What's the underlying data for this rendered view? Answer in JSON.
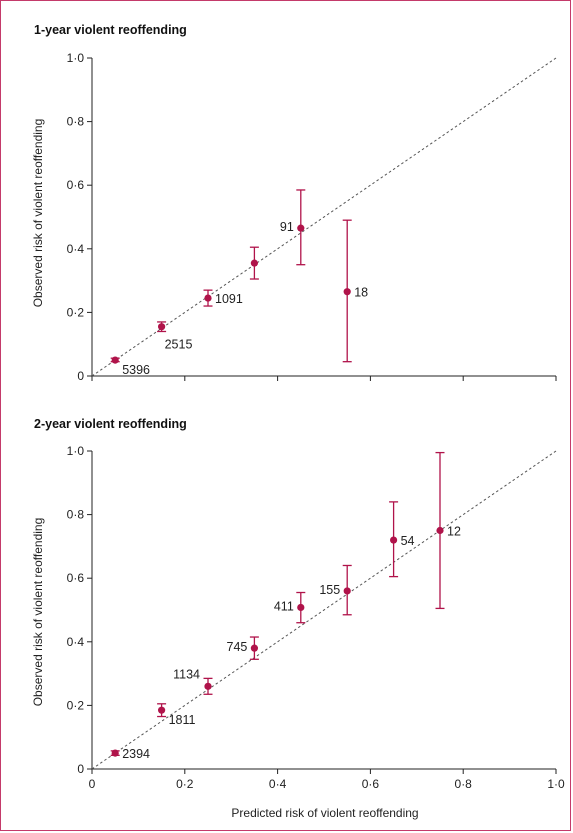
{
  "colors": {
    "marker": "#b0134a",
    "frame": "#c43a6a",
    "axis": "#222222",
    "reference": "#555555"
  },
  "chart_data": [
    {
      "type": "scatter",
      "title": "1-year violent reoffending",
      "xlabel": "",
      "ylabel": "Observed risk of violent reoffending",
      "xlim": [
        0,
        1
      ],
      "ylim": [
        0,
        1
      ],
      "xticks": [
        0,
        0.2,
        0.4,
        0.6,
        0.8,
        1.0
      ],
      "xtick_labels": [
        "",
        "",
        "",
        "",
        "",
        ""
      ],
      "yticks": [
        0,
        0.2,
        0.4,
        0.6,
        0.8,
        1.0
      ],
      "ytick_labels": [
        "0",
        "0·2",
        "0·4",
        "0·6",
        "0·8",
        "1·0"
      ],
      "reference_line": "y = x (dashed)",
      "points": [
        {
          "x": 0.05,
          "y": 0.05,
          "lo": 0.045,
          "hi": 0.056,
          "label": "5396",
          "label_pos": "right-below"
        },
        {
          "x": 0.15,
          "y": 0.155,
          "lo": 0.14,
          "hi": 0.17,
          "label": "2515",
          "label_pos": "below"
        },
        {
          "x": 0.25,
          "y": 0.245,
          "lo": 0.22,
          "hi": 0.27,
          "label": "1091",
          "label_pos": "right"
        },
        {
          "x": 0.35,
          "y": 0.355,
          "lo": 0.305,
          "hi": 0.405,
          "label": "",
          "label_pos": "none"
        },
        {
          "x": 0.45,
          "y": 0.465,
          "lo": 0.35,
          "hi": 0.585,
          "label": "91",
          "label_pos": "left"
        },
        {
          "x": 0.55,
          "y": 0.265,
          "lo": 0.045,
          "hi": 0.49,
          "label": "18",
          "label_pos": "right"
        }
      ]
    },
    {
      "type": "scatter",
      "title": "2-year violent reoffending",
      "xlabel": "Predicted risk of violent reoffending",
      "ylabel": "Observed risk of violent reoffending",
      "xlim": [
        0,
        1
      ],
      "ylim": [
        0,
        1
      ],
      "xticks": [
        0,
        0.2,
        0.4,
        0.6,
        0.8,
        1.0
      ],
      "xtick_labels": [
        "0",
        "0·2",
        "0·4",
        "0·6",
        "0·8",
        "1·0"
      ],
      "yticks": [
        0,
        0.2,
        0.4,
        0.6,
        0.8,
        1.0
      ],
      "ytick_labels": [
        "0",
        "0·2",
        "0·4",
        "0·6",
        "0·8",
        "1·0"
      ],
      "reference_line": "y = x (dashed)",
      "points": [
        {
          "x": 0.05,
          "y": 0.05,
          "lo": 0.043,
          "hi": 0.057,
          "label": "2394",
          "label_pos": "right"
        },
        {
          "x": 0.15,
          "y": 0.185,
          "lo": 0.165,
          "hi": 0.205,
          "label": "1811",
          "label_pos": "right-below"
        },
        {
          "x": 0.25,
          "y": 0.26,
          "lo": 0.235,
          "hi": 0.285,
          "label": "1134",
          "label_pos": "left-above"
        },
        {
          "x": 0.35,
          "y": 0.38,
          "lo": 0.345,
          "hi": 0.415,
          "label": "745",
          "label_pos": "left"
        },
        {
          "x": 0.45,
          "y": 0.508,
          "lo": 0.46,
          "hi": 0.555,
          "label": "411",
          "label_pos": "left"
        },
        {
          "x": 0.55,
          "y": 0.56,
          "lo": 0.485,
          "hi": 0.64,
          "label": "155",
          "label_pos": "left"
        },
        {
          "x": 0.65,
          "y": 0.72,
          "lo": 0.605,
          "hi": 0.84,
          "label": "54",
          "label_pos": "right"
        },
        {
          "x": 0.75,
          "y": 0.75,
          "lo": 0.505,
          "hi": 0.995,
          "label": "12",
          "label_pos": "right"
        }
      ]
    }
  ]
}
